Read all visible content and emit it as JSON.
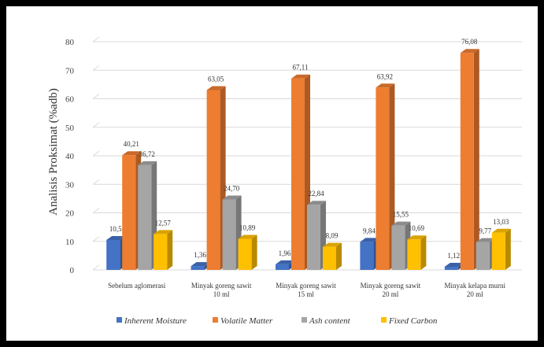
{
  "chart_data": {
    "type": "bar",
    "ylabel": "Analisis Proksimat (%adb)",
    "ylim": [
      0,
      80
    ],
    "yticks": [
      0,
      10,
      20,
      30,
      40,
      50,
      60,
      70,
      80
    ],
    "grid": true,
    "legend_position": "bottom",
    "categories": [
      [
        "Sebelum aglomerasi"
      ],
      [
        "Minyak goreng sawit",
        "10 ml"
      ],
      [
        "Minyak goreng sawit",
        "15 ml"
      ],
      [
        "Minyak goreng sawit",
        "20 ml"
      ],
      [
        "Minyak kelapa murni",
        "20 ml"
      ]
    ],
    "series": [
      {
        "name": "Inherent Moisture",
        "color": "#4472c4",
        "values": [
          10.5,
          1.36,
          1.96,
          9.84,
          1.12
        ],
        "labels": [
          "10,5",
          "1,36",
          "1,96",
          "9,84",
          "1,12"
        ]
      },
      {
        "name": "Volatile Matter",
        "color": "#ed7d31",
        "values": [
          40.21,
          63.05,
          67.11,
          63.92,
          76.08
        ],
        "labels": [
          "40,21",
          "63,05",
          "67,11",
          "63,92",
          "76,08"
        ]
      },
      {
        "name": "Ash content",
        "color": "#a5a5a5",
        "values": [
          36.72,
          24.7,
          22.84,
          15.55,
          9.77
        ],
        "labels": [
          "36,72",
          "24,70",
          "22,84",
          "15,55",
          "9,77"
        ]
      },
      {
        "name": "Fixed Carbon",
        "color": "#ffc000",
        "values": [
          12.57,
          10.89,
          8.09,
          10.69,
          13.03
        ],
        "labels": [
          "12,57",
          "10,89",
          "8,09",
          "10,69",
          "13,03"
        ]
      }
    ]
  }
}
